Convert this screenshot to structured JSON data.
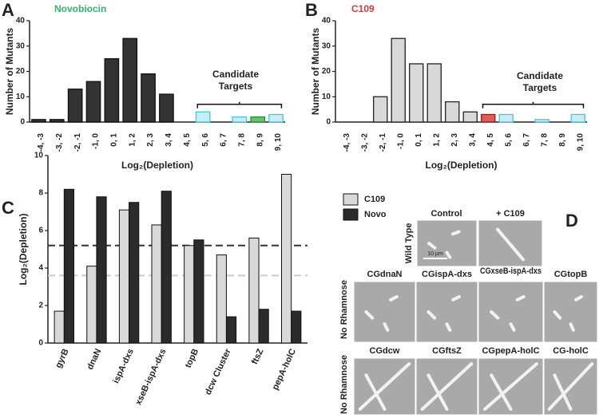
{
  "chart_data": [
    {
      "type": "bar",
      "panel": "A",
      "title": "Novobiocin",
      "title_color": "#2fb36b",
      "y_label": "Number of Mutants",
      "x_label": "Log₂(Depletion)",
      "annotation": [
        "Candidate",
        "Targets"
      ],
      "categories": [
        "-4, -3",
        "-3, -2",
        "-2, -1",
        "-1, 0",
        "0, 1",
        "1, 2",
        "2, 3",
        "3, 4",
        "4, 5",
        "5, 6",
        "6, 7",
        "7, 8",
        "8, 9",
        "9, 10"
      ],
      "values": [
        1,
        1,
        13,
        16,
        25,
        33,
        19,
        11,
        0,
        4,
        0,
        2,
        2,
        3
      ],
      "colors": [
        "#333333",
        "#333333",
        "#333333",
        "#333333",
        "#333333",
        "#333333",
        "#333333",
        "#333333",
        "#333333",
        "#c8eef5",
        "#c8eef5",
        "#c8eef5",
        "#6cc46a",
        "#c8eef5"
      ],
      "edge_colors": [
        "#111111",
        "#111111",
        "#111111",
        "#111111",
        "#111111",
        "#111111",
        "#111111",
        "#111111",
        "#111111",
        "#4fc3d9",
        "#4fc3d9",
        "#4fc3d9",
        "#2e8b3a",
        "#4fc3d9"
      ],
      "ylim": [
        0,
        40
      ],
      "yticks": [
        0,
        10,
        20,
        30,
        40
      ]
    },
    {
      "type": "bar",
      "panel": "B",
      "title": "C109",
      "title_color": "#d23a3a",
      "y_label": "Number of Mutants",
      "x_label": "Log₂(Depletion)",
      "annotation": [
        "Candidate",
        "Targets"
      ],
      "categories": [
        "-4, -3",
        "-3, -2",
        "-2, -1",
        "-1, 0",
        "0, 1",
        "1, 2",
        "2, 3",
        "3, 4",
        "4, 5",
        "5, 6",
        "6, 7",
        "7, 8",
        "8, 9",
        "9, 10"
      ],
      "values": [
        0,
        0,
        10,
        33,
        23,
        23,
        8,
        4,
        3,
        3,
        0,
        1,
        0,
        3
      ],
      "colors": [
        "#d9d9d9",
        "#d9d9d9",
        "#d9d9d9",
        "#d9d9d9",
        "#d9d9d9",
        "#d9d9d9",
        "#d9d9d9",
        "#d9d9d9",
        "#e05a5a",
        "#c8eef5",
        "#c8eef5",
        "#c8eef5",
        "#c8eef5",
        "#c8eef5"
      ],
      "edge_colors": [
        "#222222",
        "#222222",
        "#222222",
        "#222222",
        "#222222",
        "#222222",
        "#222222",
        "#222222",
        "#a01818",
        "#4fc3d9",
        "#4fc3d9",
        "#4fc3d9",
        "#4fc3d9",
        "#4fc3d9"
      ],
      "ylim": [
        0,
        40
      ],
      "yticks": [
        0,
        10,
        20,
        30,
        40
      ]
    },
    {
      "type": "grouped_bar",
      "panel": "C",
      "y_label": "Log₂(Depletion)",
      "categories": [
        "gyrB",
        "dnaN",
        "ispA-dxs",
        "xseB-ispA-dxs",
        "topB",
        "dcw Cluster",
        "ftsZ",
        "pepA-holC"
      ],
      "series": [
        {
          "name": "C109",
          "color": "#d9d9d9",
          "values": [
            1.7,
            4.1,
            7.1,
            6.3,
            5.2,
            4.7,
            5.6,
            9.0
          ]
        },
        {
          "name": "Novo",
          "color": "#2b2b2b",
          "values": [
            8.2,
            7.8,
            7.5,
            8.1,
            5.5,
            1.4,
            1.8,
            1.7
          ]
        }
      ],
      "reference_lines": [
        {
          "value": 5.2,
          "color": "#333333"
        },
        {
          "value": 3.6,
          "color": "#cccccc"
        }
      ],
      "ylim": [
        0,
        10
      ],
      "yticks": [
        0,
        2,
        4,
        6,
        8,
        10
      ],
      "legend": "upper right"
    }
  ],
  "panel_d": {
    "panel": "D",
    "column_titles": [
      "Control",
      "+ C109"
    ],
    "row_labels": [
      "Wild Type",
      "No Rhamnose",
      "No Rhamnose"
    ],
    "scale_bar": "10 µm",
    "strains": [
      "CGdnaN",
      "CGispA-dxs",
      "CGxseB-ispA-dxs",
      "CGtopB",
      "CGdcw",
      "CGftsZ",
      "CGpepA-holC",
      "CG-holC"
    ]
  }
}
